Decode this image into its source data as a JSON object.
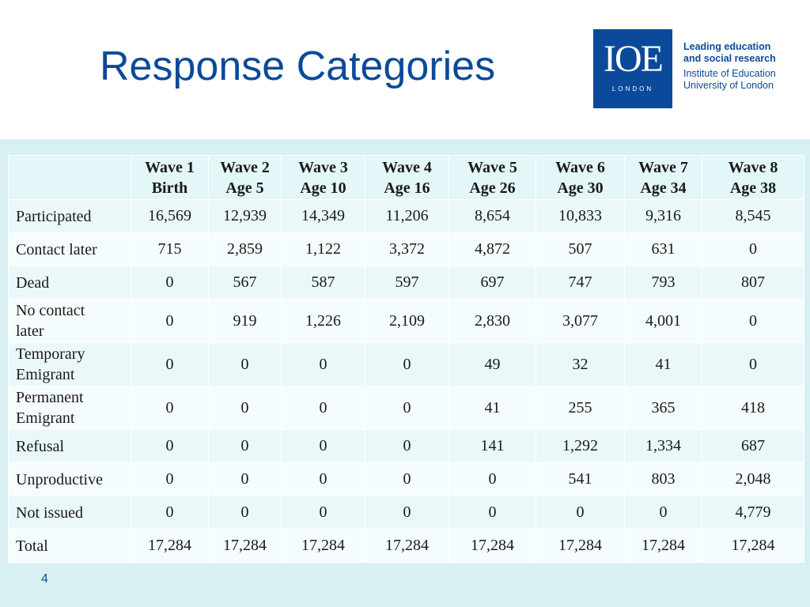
{
  "slide": {
    "title": "Response Categories",
    "page_number": "4"
  },
  "logo": {
    "mark": "IOE",
    "city": "LONDON",
    "tagline_line1": "Leading education",
    "tagline_line2": "and social research",
    "institution_line1": "Institute of Education",
    "institution_line2": "University of London"
  },
  "colors": {
    "brand_blue": "#0b4a9a",
    "band": "#d8f0f2",
    "row_odd": "#ebf8f9",
    "row_even": "#f5fcfd"
  },
  "table": {
    "headers": [
      {
        "line1": "",
        "line2": ""
      },
      {
        "line1": "Wave 1",
        "line2": "Birth"
      },
      {
        "line1": "Wave 2",
        "line2": "Age 5"
      },
      {
        "line1": "Wave 3",
        "line2": "Age 10"
      },
      {
        "line1": "Wave 4",
        "line2": "Age 16"
      },
      {
        "line1": "Wave 5",
        "line2": "Age 26"
      },
      {
        "line1": "Wave 6",
        "line2": "Age 30"
      },
      {
        "line1": "Wave 7",
        "line2": "Age 34"
      },
      {
        "line1": "Wave 8",
        "line2": "Age 38"
      }
    ],
    "rows": [
      {
        "label1": "Participated",
        "label2": "",
        "values": [
          "16,569",
          "12,939",
          "14,349",
          "11,206",
          "8,654",
          "10,833",
          "9,316",
          "8,545"
        ]
      },
      {
        "label1": "Contact later",
        "label2": "",
        "values": [
          "715",
          "2,859",
          "1,122",
          "3,372",
          "4,872",
          "507",
          "631",
          "0"
        ]
      },
      {
        "label1": "Dead",
        "label2": "",
        "values": [
          "0",
          "567",
          "587",
          "597",
          "697",
          "747",
          "793",
          "807"
        ]
      },
      {
        "label1": "No contact",
        "label2": "later",
        "values": [
          "0",
          "919",
          "1,226",
          "2,109",
          "2,830",
          "3,077",
          "4,001",
          "0"
        ]
      },
      {
        "label1": "Temporary",
        "label2": "Emigrant",
        "values": [
          "0",
          "0",
          "0",
          "0",
          "49",
          "32",
          "41",
          "0"
        ]
      },
      {
        "label1": "Permanent",
        "label2": "Emigrant",
        "values": [
          "0",
          "0",
          "0",
          "0",
          "41",
          "255",
          "365",
          "418"
        ]
      },
      {
        "label1": "Refusal",
        "label2": "",
        "values": [
          "0",
          "0",
          "0",
          "0",
          "141",
          "1,292",
          "1,334",
          "687"
        ]
      },
      {
        "label1": "Unproductive",
        "label2": "",
        "values": [
          "0",
          "0",
          "0",
          "0",
          "0",
          "541",
          "803",
          "2,048"
        ]
      },
      {
        "label1": "Not issued",
        "label2": "",
        "values": [
          "0",
          "0",
          "0",
          "0",
          "0",
          "0",
          "0",
          "4,779"
        ]
      },
      {
        "label1": "Total",
        "label2": "",
        "values": [
          "17,284",
          "17,284",
          "17,284",
          "17,284",
          "17,284",
          "17,284",
          "17,284",
          "17,284"
        ]
      }
    ]
  }
}
